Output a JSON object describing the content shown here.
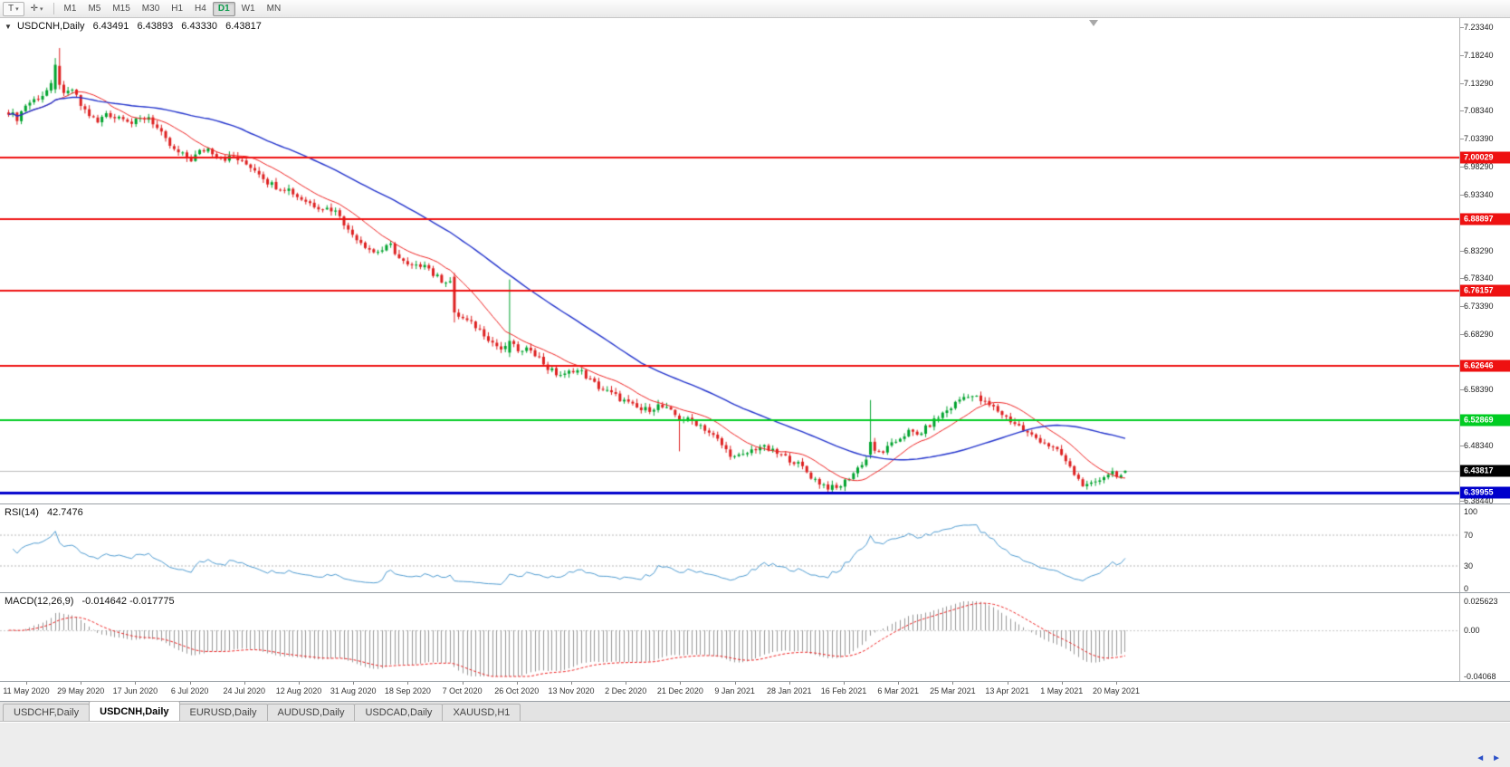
{
  "toolbar": {
    "template_button": "T",
    "cursor_tool_icon": "✛",
    "dropdown_glyph": "▾",
    "timeframes": [
      "M1",
      "M5",
      "M15",
      "M30",
      "H1",
      "H4",
      "D1",
      "W1",
      "MN"
    ],
    "active_timeframe": "D1"
  },
  "header": {
    "marker": "▼"
  },
  "chart_data": {
    "type": "candlestick",
    "title": "USDCNH,Daily",
    "ohlc": {
      "open": "6.43491",
      "high": "6.43893",
      "low": "6.43330",
      "close": "6.43817"
    },
    "y_axis": {
      "top": 7.2334,
      "bottom": 6.3844,
      "labels": [
        "7.23340",
        "7.18240",
        "7.13290",
        "7.08340",
        "7.03390",
        "6.98290",
        "6.93340",
        "6.83290",
        "6.78340",
        "6.73390",
        "6.68290",
        "6.58390",
        "6.48340",
        "6.38440"
      ]
    },
    "x_labels": [
      "11 May 2020",
      "29 May 2020",
      "17 Jun 2020",
      "6 Jul 2020",
      "24 Jul 2020",
      "12 Aug 2020",
      "31 Aug 2020",
      "18 Sep 2020",
      "7 Oct 2020",
      "26 Oct 2020",
      "13 Nov 2020",
      "2 Dec 2020",
      "21 Dec 2020",
      "9 Jan 2021",
      "28 Jan 2021",
      "16 Feb 2021",
      "6 Mar 2021",
      "25 Mar 2021",
      "13 Apr 2021",
      "1 May 2021",
      "20 May 2021"
    ],
    "bar_count": 264,
    "close_path": [
      [
        0,
        7.082
      ],
      [
        2,
        7.07
      ],
      [
        4,
        7.094
      ],
      [
        6,
        7.103
      ],
      [
        8,
        7.112
      ],
      [
        10,
        7.128
      ],
      [
        13,
        7.11
      ],
      [
        15,
        7.122
      ],
      [
        17,
        7.093
      ],
      [
        19,
        7.076
      ],
      [
        21,
        7.062
      ],
      [
        23,
        7.08
      ],
      [
        25,
        7.072
      ],
      [
        27,
        7.074
      ],
      [
        29,
        7.061
      ],
      [
        31,
        7.068
      ],
      [
        33,
        7.073
      ],
      [
        35,
        7.052
      ],
      [
        37,
        7.03
      ],
      [
        39,
        7.012
      ],
      [
        41,
        7.004
      ],
      [
        43,
        6.996
      ],
      [
        45,
        7.01
      ],
      [
        47,
        7.016
      ],
      [
        49,
        7.003
      ],
      [
        51,
        6.998
      ],
      [
        53,
        7.001
      ],
      [
        55,
        6.991
      ],
      [
        57,
        6.984
      ],
      [
        59,
        6.973
      ],
      [
        61,
        6.956
      ],
      [
        63,
        6.948
      ],
      [
        66,
        6.943
      ],
      [
        68,
        6.93
      ],
      [
        70,
        6.922
      ],
      [
        72,
        6.914
      ],
      [
        74,
        6.91
      ],
      [
        76,
        6.907
      ],
      [
        78,
        6.898
      ],
      [
        80,
        6.868
      ],
      [
        82,
        6.856
      ],
      [
        84,
        6.842
      ],
      [
        86,
        6.83
      ],
      [
        88,
        6.834
      ],
      [
        90,
        6.842
      ],
      [
        92,
        6.819
      ],
      [
        94,
        6.805
      ],
      [
        96,
        6.803
      ],
      [
        98,
        6.812
      ],
      [
        100,
        6.79
      ],
      [
        102,
        6.78
      ],
      [
        104,
        6.778
      ],
      [
        106,
        6.716
      ],
      [
        108,
        6.706
      ],
      [
        110,
        6.697
      ],
      [
        112,
        6.684
      ],
      [
        114,
        6.668
      ],
      [
        116,
        6.656
      ],
      [
        119,
        6.66
      ],
      [
        121,
        6.65
      ],
      [
        123,
        6.658
      ],
      [
        125,
        6.64
      ],
      [
        127,
        6.622
      ],
      [
        129,
        6.612
      ],
      [
        131,
        6.609
      ],
      [
        133,
        6.62
      ],
      [
        135,
        6.615
      ],
      [
        137,
        6.6
      ],
      [
        139,
        6.588
      ],
      [
        141,
        6.58
      ],
      [
        143,
        6.572
      ],
      [
        145,
        6.563
      ],
      [
        147,
        6.554
      ],
      [
        149,
        6.547
      ],
      [
        151,
        6.549
      ],
      [
        153,
        6.555
      ],
      [
        155,
        6.548
      ],
      [
        157,
        6.538
      ],
      [
        159,
        6.531
      ],
      [
        161,
        6.527
      ],
      [
        163,
        6.52
      ],
      [
        165,
        6.507
      ],
      [
        167,
        6.493
      ],
      [
        169,
        6.475
      ],
      [
        171,
        6.462
      ],
      [
        173,
        6.465
      ],
      [
        175,
        6.475
      ],
      [
        177,
        6.482
      ],
      [
        179,
        6.476
      ],
      [
        181,
        6.469
      ],
      [
        183,
        6.462
      ],
      [
        185,
        6.455
      ],
      [
        187,
        6.444
      ],
      [
        189,
        6.428
      ],
      [
        191,
        6.417
      ],
      [
        193,
        6.409
      ],
      [
        195,
        6.406
      ],
      [
        197,
        6.419
      ],
      [
        199,
        6.434
      ],
      [
        201,
        6.452
      ],
      [
        204,
        6.47
      ],
      [
        206,
        6.473
      ],
      [
        208,
        6.484
      ],
      [
        210,
        6.498
      ],
      [
        212,
        6.508
      ],
      [
        214,
        6.502
      ],
      [
        216,
        6.514
      ],
      [
        218,
        6.528
      ],
      [
        220,
        6.541
      ],
      [
        222,
        6.552
      ],
      [
        224,
        6.566
      ],
      [
        226,
        6.575
      ],
      [
        228,
        6.569
      ],
      [
        230,
        6.559
      ],
      [
        232,
        6.551
      ],
      [
        234,
        6.54
      ],
      [
        236,
        6.528
      ],
      [
        238,
        6.518
      ],
      [
        240,
        6.505
      ],
      [
        242,
        6.497
      ],
      [
        244,
        6.489
      ],
      [
        246,
        6.478
      ],
      [
        248,
        6.466
      ],
      [
        250,
        6.443
      ],
      [
        252,
        6.422
      ],
      [
        254,
        6.409
      ],
      [
        256,
        6.415
      ],
      [
        258,
        6.43
      ],
      [
        260,
        6.436
      ],
      [
        262,
        6.429
      ],
      [
        263,
        6.438
      ]
    ],
    "special_bars": [
      {
        "day": 11,
        "open": 7.122,
        "high": 7.178,
        "low": 7.115,
        "close": 7.166
      },
      {
        "day": 12,
        "open": 7.164,
        "high": 7.196,
        "low": 7.122,
        "close": 7.13
      },
      {
        "day": 105,
        "open": 6.786,
        "high": 6.793,
        "low": 6.704,
        "close": 6.722
      },
      {
        "day": 118,
        "open": 6.65,
        "high": 6.781,
        "low": 6.642,
        "close": 6.671
      },
      {
        "day": 158,
        "open": 6.537,
        "high": 6.541,
        "low": 6.473,
        "close": 6.529
      },
      {
        "day": 203,
        "open": 6.467,
        "high": 6.565,
        "low": 6.46,
        "close": 6.49
      },
      {
        "day": 263,
        "open": 6.43491,
        "high": 6.43893,
        "low": 6.4333,
        "close": 6.43817
      }
    ],
    "horizontal_lines": [
      {
        "price": 7.00029,
        "label": "7.00029",
        "color": "#ee1111",
        "width": 2
      },
      {
        "price": 6.88897,
        "label": "6.88897",
        "color": "#ee1111",
        "width": 2
      },
      {
        "price": 6.76157,
        "label": "6.76157",
        "color": "#ee1111",
        "width": 2
      },
      {
        "price": 6.62646,
        "label": "6.62646",
        "color": "#ee1111",
        "width": 2
      },
      {
        "price": 6.52869,
        "label": "6.52869",
        "color": "#00cc22",
        "width": 2
      },
      {
        "price": 6.39955,
        "label": "6.39955",
        "color": "#0000cc",
        "width": 3
      }
    ],
    "current_price": {
      "value": 6.43817,
      "label": "6.43817",
      "line_color": "#bbbbbb",
      "badge_color": "#000000"
    },
    "candle_colors": {
      "up": "#00a32e",
      "down": "#dd2020"
    },
    "moving_averages": [
      {
        "period": 13,
        "color": "#ee2222",
        "width": 1
      },
      {
        "period": 45,
        "color": "#2233cc",
        "width": 1.4
      }
    ],
    "indicators": [
      {
        "label": "RSI(14)",
        "value": "42.7476",
        "line_color": "#4f9bd0",
        "levels": [
          {
            "text": "100",
            "value": 100
          },
          {
            "text": "70",
            "value": 70
          },
          {
            "text": "30",
            "value": 30
          },
          {
            "text": "0",
            "value": 0
          }
        ],
        "dotted_levels": [
          70,
          30
        ]
      },
      {
        "label": "MACD(12,26,9)",
        "values": "-0.014642 -0.017775",
        "histogram_color": "#999999",
        "signal_color": "#ee2222",
        "axis": [
          {
            "text": "0.025623",
            "value": 0.025623
          },
          {
            "text": "0.00",
            "value": 0.0
          },
          {
            "text": "-0.04068",
            "value": -0.04068
          }
        ]
      }
    ]
  },
  "tabs": [
    {
      "label": "USDCHF,Daily",
      "active": false
    },
    {
      "label": "USDCNH,Daily",
      "active": true
    },
    {
      "label": "EURUSD,Daily",
      "active": false
    },
    {
      "label": "AUDUSD,Daily",
      "active": false
    },
    {
      "label": "USDCAD,Daily",
      "active": false
    },
    {
      "label": "XAUUSD,H1",
      "active": false
    }
  ],
  "bottom": {
    "scroll_left": "◄",
    "scroll_right": "►"
  }
}
